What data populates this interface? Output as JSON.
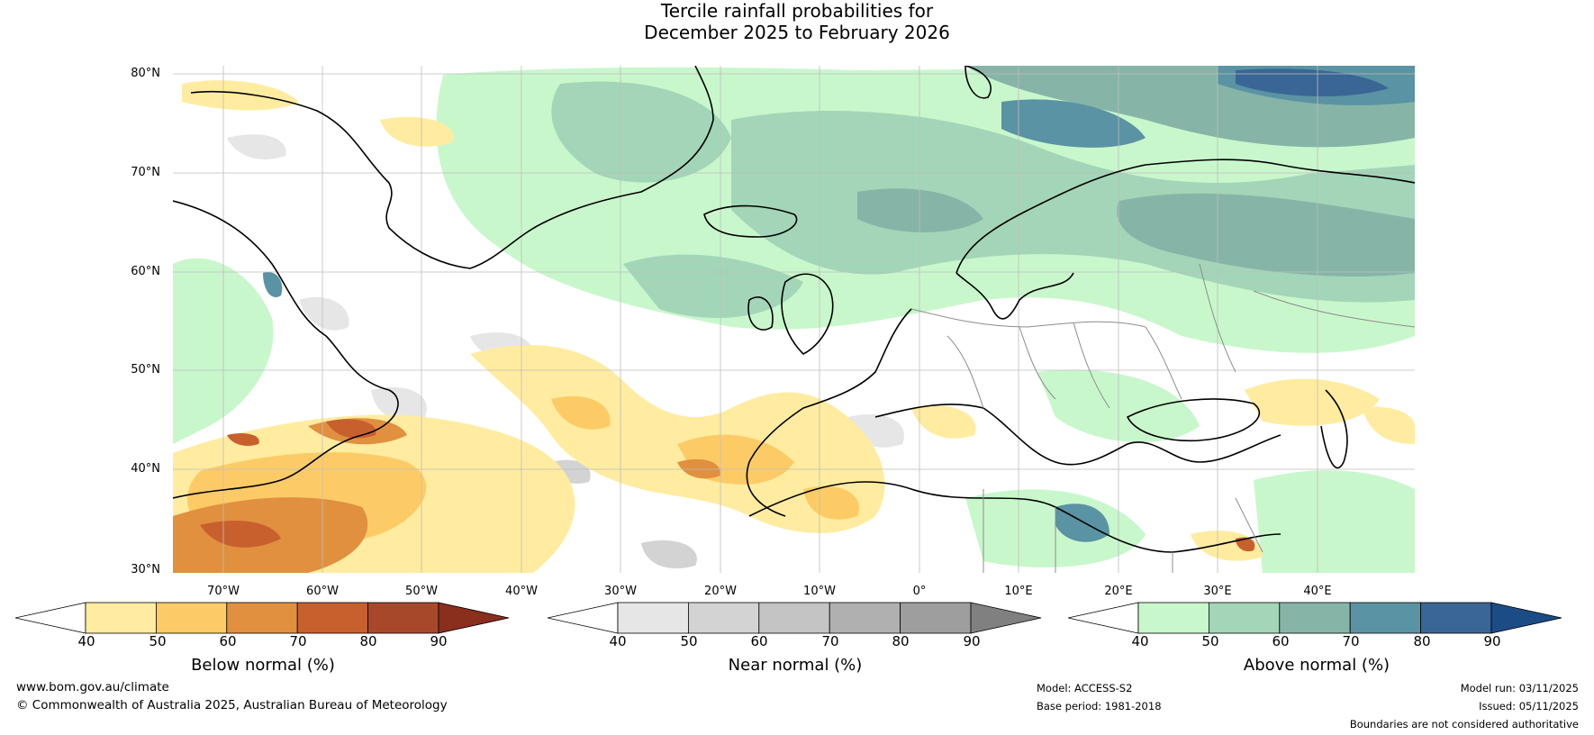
{
  "title": {
    "line1": "Tercile rainfall probabilities for",
    "line2": "December 2025 to February 2026"
  },
  "map": {
    "lat_labels": [
      "80°N",
      "70°N",
      "60°N",
      "50°N",
      "40°N",
      "30°N"
    ],
    "lon_labels": [
      "70°W",
      "60°W",
      "50°W",
      "40°W",
      "30°W",
      "20°W",
      "10°W",
      "0°",
      "10°E",
      "20°E",
      "30°E",
      "40°E"
    ]
  },
  "colorbars": {
    "below": {
      "label": "Below normal (%)",
      "ticks": [
        "40",
        "50",
        "60",
        "70",
        "80",
        "90"
      ],
      "colors": [
        "#ffffff",
        "#ffeca0",
        "#fdcb66",
        "#e0903f",
        "#c8602e",
        "#a8482a",
        "#8a2e1e"
      ]
    },
    "near": {
      "label": "Near normal (%)",
      "ticks": [
        "40",
        "50",
        "60",
        "70",
        "80",
        "90"
      ],
      "colors": [
        "#ffffff",
        "#e6e6e6",
        "#d3d3d3",
        "#c4c4c4",
        "#b0b0b0",
        "#9e9e9e",
        "#808080"
      ]
    },
    "above": {
      "label": "Above normal (%)",
      "ticks": [
        "40",
        "50",
        "60",
        "70",
        "80",
        "90"
      ],
      "colors": [
        "#ffffff",
        "#c9f7cc",
        "#a3d6b8",
        "#86b5a8",
        "#5a93a3",
        "#3a6695",
        "#1b4c86"
      ]
    }
  },
  "footer": {
    "website": "www.bom.gov.au/climate",
    "copyright": "© Commonwealth of Australia 2025, Australian Bureau of Meteorology",
    "model": "Model: ACCESS-S2",
    "base_period": "Base period: 1981-2018",
    "model_run": "Model run: 03/11/2025",
    "issued": "Issued: 05/11/2025",
    "disclaimer": "Boundaries are not considered authoritative"
  }
}
